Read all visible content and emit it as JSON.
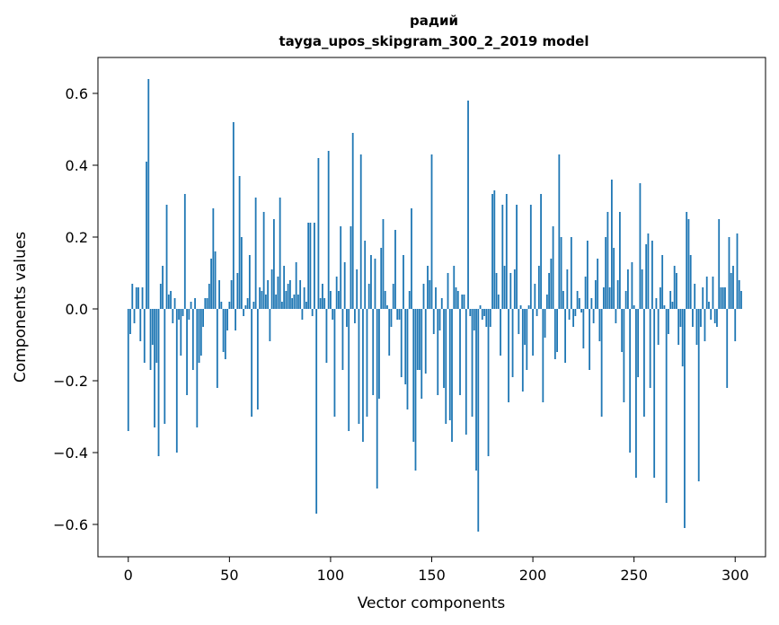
{
  "chart_data": {
    "type": "bar",
    "title": "радий",
    "subtitle": "tayga_upos_skipgram_300_2_2019 model",
    "xlabel": "Vector components",
    "ylabel": "Components values",
    "xlim": [
      -15,
      315
    ],
    "ylim": [
      -0.69,
      0.7
    ],
    "x_ticks": [
      0,
      50,
      100,
      150,
      200,
      250,
      300
    ],
    "x_tick_labels": [
      "0",
      "50",
      "100",
      "150",
      "200",
      "250",
      "300"
    ],
    "y_ticks": [
      -0.6,
      -0.4,
      -0.2,
      0.0,
      0.2,
      0.4,
      0.6
    ],
    "y_tick_labels": [
      "−0.6",
      "−0.4",
      "−0.2",
      "0.0",
      "0.2",
      "0.4",
      "0.6"
    ],
    "grid": false,
    "bar_color": "#1f77b4",
    "values": [
      -0.34,
      -0.07,
      0.07,
      -0.04,
      0.06,
      0.06,
      -0.09,
      0.06,
      -0.15,
      0.41,
      0.64,
      -0.17,
      -0.1,
      -0.33,
      -0.15,
      -0.41,
      0.07,
      0.12,
      -0.32,
      0.29,
      0.04,
      0.05,
      -0.04,
      0.03,
      -0.4,
      -0.03,
      -0.13,
      -0.02,
      0.32,
      -0.24,
      -0.03,
      0.02,
      -0.17,
      0.03,
      -0.33,
      -0.15,
      -0.13,
      -0.05,
      0.03,
      0.03,
      0.07,
      0.14,
      0.28,
      0.16,
      -0.22,
      0.08,
      0.02,
      -0.12,
      -0.14,
      -0.06,
      0.02,
      0.08,
      0.52,
      -0.06,
      0.1,
      0.37,
      0.2,
      -0.02,
      0.01,
      0.03,
      0.15,
      -0.3,
      0.02,
      0.31,
      -0.28,
      0.06,
      0.05,
      0.27,
      0.04,
      0.08,
      -0.09,
      0.11,
      0.25,
      0.04,
      0.09,
      0.31,
      0.02,
      0.12,
      0.05,
      0.07,
      0.08,
      0.03,
      0.04,
      0.13,
      0.04,
      0.08,
      -0.03,
      0.06,
      0.02,
      0.24,
      0.24,
      -0.02,
      0.24,
      -0.57,
      0.42,
      0.03,
      0.07,
      0.03,
      -0.15,
      0.44,
      0.05,
      -0.03,
      -0.3,
      0.09,
      0.05,
      0.23,
      -0.17,
      0.13,
      -0.05,
      -0.34,
      0.23,
      0.49,
      -0.04,
      0.11,
      -0.32,
      0.43,
      -0.37,
      0.19,
      -0.3,
      0.07,
      0.15,
      -0.24,
      0.14,
      -0.5,
      -0.25,
      0.17,
      0.25,
      0.05,
      0.01,
      -0.13,
      -0.05,
      0.07,
      0.22,
      -0.03,
      -0.03,
      -0.19,
      0.15,
      -0.21,
      -0.28,
      0.05,
      0.28,
      -0.37,
      -0.45,
      -0.17,
      -0.17,
      -0.25,
      0.07,
      -0.18,
      0.12,
      0.08,
      0.43,
      -0.07,
      0.06,
      -0.24,
      -0.06,
      0.03,
      -0.22,
      -0.32,
      0.1,
      -0.31,
      -0.37,
      0.12,
      0.06,
      0.05,
      -0.24,
      0.04,
      0.04,
      -0.35,
      0.58,
      -0.02,
      -0.3,
      -0.06,
      -0.45,
      -0.62,
      0.01,
      -0.03,
      -0.02,
      -0.05,
      -0.41,
      -0.05,
      0.32,
      0.33,
      0.1,
      0.04,
      -0.13,
      0.29,
      0.12,
      0.32,
      -0.26,
      0.1,
      -0.19,
      0.11,
      0.29,
      -0.07,
      0.01,
      -0.23,
      -0.1,
      -0.17,
      0.01,
      0.29,
      -0.13,
      0.07,
      -0.02,
      0.12,
      0.32,
      -0.26,
      -0.08,
      0.04,
      0.1,
      0.14,
      0.23,
      -0.14,
      -0.12,
      0.43,
      0.2,
      0.05,
      -0.15,
      0.11,
      -0.03,
      0.2,
      -0.05,
      -0.02,
      0.05,
      0.03,
      -0.01,
      -0.11,
      0.09,
      0.19,
      -0.17,
      0.03,
      -0.04,
      0.08,
      0.14,
      -0.09,
      -0.3,
      0.06,
      0.2,
      0.27,
      0.06,
      0.36,
      0.17,
      -0.04,
      0.08,
      0.27,
      -0.12,
      -0.26,
      0.05,
      0.11,
      -0.4,
      0.13,
      0.01,
      -0.47,
      -0.19,
      0.35,
      0.11,
      -0.3,
      0.18,
      0.21,
      -0.22,
      0.19,
      -0.47,
      0.03,
      -0.1,
      0.06,
      0.15,
      0.01,
      -0.54,
      -0.07,
      0.05,
      0.02,
      0.12,
      0.1,
      -0.1,
      -0.05,
      -0.16,
      -0.61,
      0.27,
      0.25,
      0.15,
      -0.05,
      0.07,
      -0.1,
      -0.48,
      -0.05,
      0.06,
      -0.09,
      0.09,
      0.02,
      -0.03,
      0.09,
      -0.04,
      -0.05,
      0.25,
      0.06,
      0.06,
      0.06,
      -0.22,
      0.2,
      0.1,
      0.12,
      -0.09,
      0.21,
      0.08,
      0.05
    ]
  }
}
